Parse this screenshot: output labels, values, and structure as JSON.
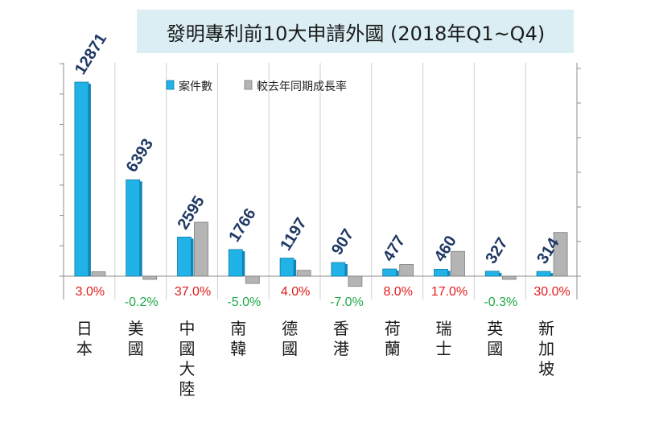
{
  "chart_data": {
    "type": "bar",
    "title": "發明專利前10大申請外國 (2018年Q1~Q4)",
    "categories": [
      "日本",
      "美國",
      "中國大陸",
      "南韓",
      "德國",
      "香港",
      "荷蘭",
      "瑞士",
      "英國",
      "新加坡"
    ],
    "series": [
      {
        "name": "案件數",
        "axis": "left",
        "color": "#21b3e8",
        "values": [
          12871,
          6393,
          2595,
          1766,
          1197,
          907,
          477,
          460,
          327,
          314
        ]
      },
      {
        "name": "較去年同期成長率",
        "axis": "right",
        "unit": "%",
        "color": "#b4b4b4",
        "values": [
          3.0,
          -0.2,
          37.0,
          -5.0,
          4.0,
          -7.0,
          8.0,
          17.0,
          -0.3,
          30.0
        ]
      }
    ],
    "growth_labels": [
      "3.0%",
      "-0.2%",
      "37.0%",
      "-5.0%",
      "4.0%",
      "-7.0%",
      "8.0%",
      "17.0%",
      "-0.3%",
      "30.0%"
    ],
    "positive_color": "#e31b1b",
    "negative_color": "#1fa84a",
    "legend_position": "top",
    "grid": true,
    "ylim_left": [
      -3000,
      14000
    ],
    "ylim_right": [
      -10,
      40
    ]
  }
}
